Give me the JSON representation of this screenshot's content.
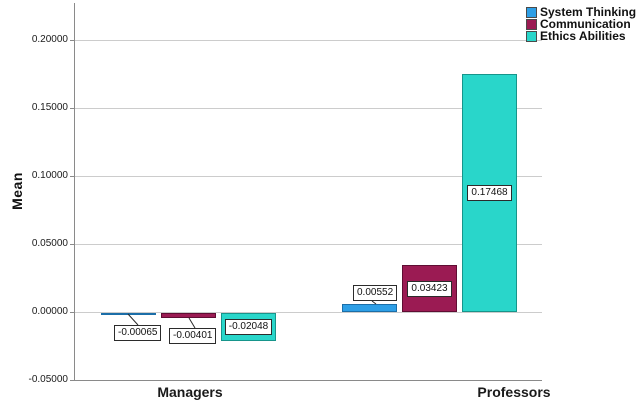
{
  "chart_data": {
    "type": "bar",
    "title": "",
    "xlabel": "",
    "ylabel": "Mean",
    "categories": [
      "Managers",
      "Professors"
    ],
    "series": [
      {
        "name": "System Thinking",
        "color": "#2e9fe6",
        "border": "#1b6ea8",
        "values": [
          -0.00065,
          0.00552
        ],
        "labels": [
          "-0.00065",
          "0.00552"
        ]
      },
      {
        "name": "Communication",
        "color": "#9b1b53",
        "border": "#5f0d33",
        "values": [
          -0.00401,
          0.03423
        ],
        "labels": [
          "-0.00401",
          "0.03423"
        ]
      },
      {
        "name": "Ethics Abilities",
        "color": "#29d6ca",
        "border": "#17958b",
        "values": [
          -0.02048,
          0.17468
        ],
        "labels": [
          "-0.02048",
          "0.17468"
        ]
      }
    ],
    "yticks": [
      {
        "value": 0.2,
        "label": "0.20000"
      },
      {
        "value": 0.15,
        "label": "0.15000"
      },
      {
        "value": 0.1,
        "label": "0.10000"
      },
      {
        "value": 0.05,
        "label": "0.05000"
      },
      {
        "value": 0.0,
        "label": "0.00000"
      },
      {
        "value": -0.05,
        "label": "-0.05000"
      }
    ],
    "ylim": [
      -0.05,
      0.2
    ],
    "grid": true,
    "legend_position": "top-right",
    "gridline_color": "#cccccc",
    "axis_color": "#8a8a8a"
  }
}
